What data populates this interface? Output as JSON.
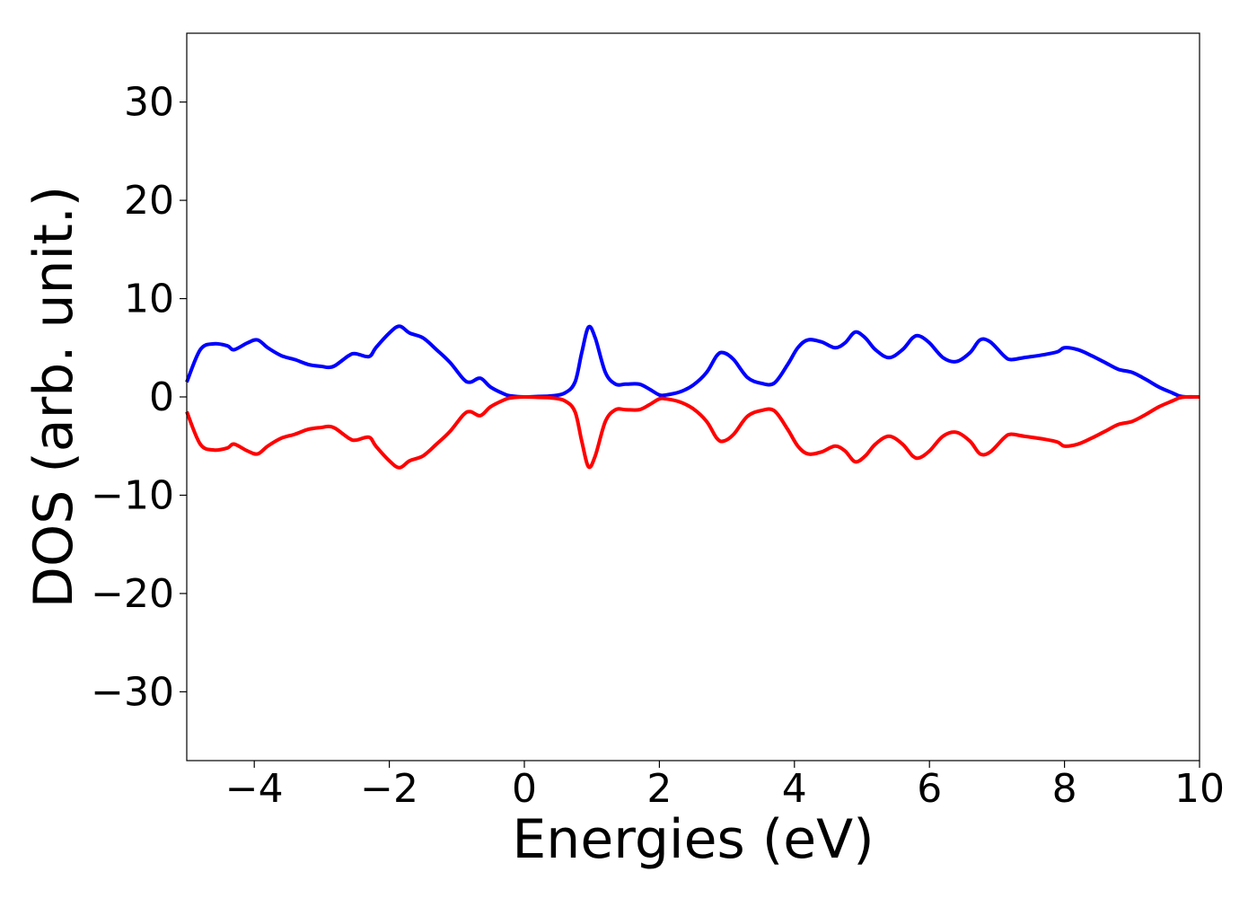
{
  "chart_data": {
    "type": "line",
    "title": "",
    "xlabel": "Energies (eV)",
    "ylabel": "DOS (arb. unit.)",
    "xlim": [
      -5,
      10
    ],
    "ylim": [
      -37,
      37
    ],
    "grid": false,
    "x_ticks": [
      -4,
      -2,
      0,
      2,
      4,
      6,
      8,
      10
    ],
    "x_tick_labels": [
      "−4",
      "−2",
      "0",
      "2",
      "4",
      "6",
      "8",
      "10"
    ],
    "y_ticks": [
      -30,
      -20,
      -10,
      0,
      10,
      20,
      30
    ],
    "y_tick_labels": [
      "−30",
      "−20",
      "−10",
      "0",
      "10",
      "20",
      "30"
    ],
    "x": [
      -5.0,
      -4.8,
      -4.6,
      -4.4,
      -4.3,
      -4.1,
      -3.95,
      -3.8,
      -3.6,
      -3.4,
      -3.2,
      -3.0,
      -2.9,
      -2.8,
      -2.6,
      -2.5,
      -2.3,
      -2.2,
      -2.0,
      -1.85,
      -1.7,
      -1.5,
      -1.3,
      -1.1,
      -0.9,
      -0.8,
      -0.65,
      -0.5,
      -0.3,
      -0.2,
      0.0,
      0.2,
      0.4,
      0.6,
      0.75,
      0.85,
      0.95,
      1.05,
      1.2,
      1.35,
      1.5,
      1.7,
      1.85,
      2.0,
      2.1,
      2.3,
      2.5,
      2.7,
      2.85,
      2.95,
      3.1,
      3.3,
      3.5,
      3.7,
      3.9,
      4.05,
      4.2,
      4.4,
      4.6,
      4.75,
      4.9,
      5.05,
      5.2,
      5.4,
      5.6,
      5.75,
      5.85,
      6.0,
      6.2,
      6.4,
      6.6,
      6.75,
      6.9,
      7.1,
      7.2,
      7.4,
      7.7,
      7.9,
      8.0,
      8.2,
      8.4,
      8.6,
      8.8,
      9.0,
      9.2,
      9.4,
      9.6,
      9.7,
      9.8,
      10.0
    ],
    "series": [
      {
        "color": "#0000ff",
        "values": [
          1.5,
          4.8,
          5.4,
          5.2,
          4.8,
          5.5,
          5.8,
          5.0,
          4.2,
          3.8,
          3.3,
          3.1,
          3.0,
          3.2,
          4.2,
          4.4,
          4.1,
          5.0,
          6.5,
          7.2,
          6.5,
          6.0,
          4.8,
          3.5,
          1.8,
          1.5,
          1.9,
          1.0,
          0.3,
          0.1,
          0.0,
          0.05,
          0.1,
          0.4,
          1.5,
          4.5,
          7.1,
          6.0,
          2.5,
          1.3,
          1.3,
          1.3,
          0.8,
          0.2,
          0.2,
          0.5,
          1.2,
          2.5,
          4.2,
          4.5,
          3.8,
          2.0,
          1.4,
          1.4,
          3.3,
          5.0,
          5.8,
          5.6,
          5.0,
          5.5,
          6.6,
          6.0,
          4.8,
          4.0,
          4.8,
          6.0,
          6.2,
          5.5,
          4.0,
          3.6,
          4.5,
          5.8,
          5.6,
          4.2,
          3.8,
          4.0,
          4.3,
          4.6,
          5.0,
          4.8,
          4.2,
          3.5,
          2.8,
          2.5,
          1.8,
          1.0,
          0.4,
          0.1,
          0.0,
          0.0
        ]
      },
      {
        "color": "#ff0000",
        "values": [
          -1.5,
          -4.8,
          -5.4,
          -5.2,
          -4.8,
          -5.5,
          -5.8,
          -5.0,
          -4.2,
          -3.8,
          -3.3,
          -3.1,
          -3.0,
          -3.2,
          -4.2,
          -4.4,
          -4.1,
          -5.0,
          -6.5,
          -7.2,
          -6.5,
          -6.0,
          -4.8,
          -3.5,
          -1.8,
          -1.5,
          -1.9,
          -1.0,
          -0.3,
          -0.1,
          0.0,
          -0.05,
          -0.1,
          -0.4,
          -1.5,
          -4.5,
          -7.1,
          -6.0,
          -2.5,
          -1.3,
          -1.3,
          -1.3,
          -0.8,
          -0.2,
          -0.2,
          -0.5,
          -1.2,
          -2.5,
          -4.2,
          -4.5,
          -3.8,
          -2.0,
          -1.4,
          -1.4,
          -3.3,
          -5.0,
          -5.8,
          -5.6,
          -5.0,
          -5.5,
          -6.6,
          -6.0,
          -4.8,
          -4.0,
          -4.8,
          -6.0,
          -6.2,
          -5.5,
          -4.0,
          -3.6,
          -4.5,
          -5.8,
          -5.6,
          -4.2,
          -3.8,
          -4.0,
          -4.3,
          -4.6,
          -5.0,
          -4.8,
          -4.2,
          -3.5,
          -2.8,
          -2.5,
          -1.8,
          -1.0,
          -0.4,
          -0.1,
          0.0,
          0.0
        ]
      }
    ]
  }
}
